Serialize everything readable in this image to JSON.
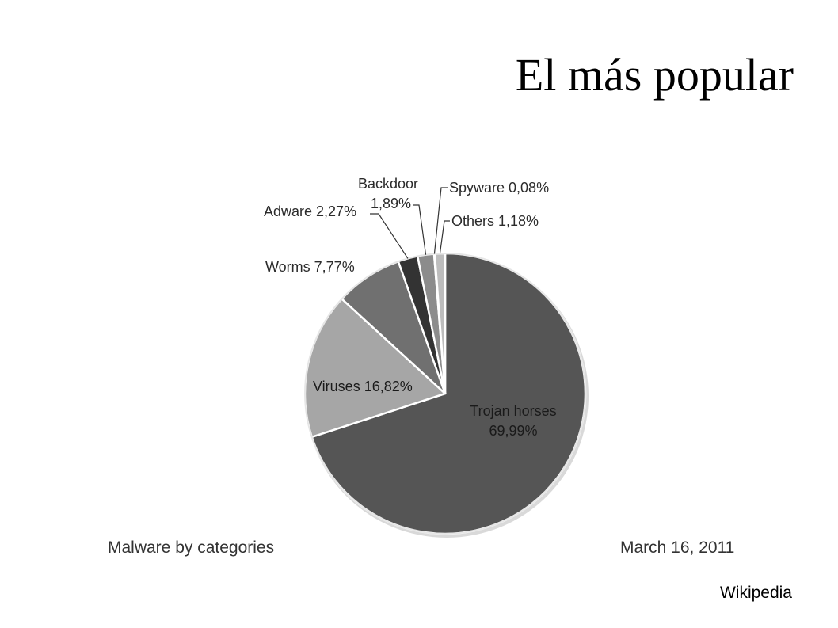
{
  "slide": {
    "title": "El más popular"
  },
  "chart_data": {
    "type": "pie",
    "title": "",
    "footer_left": "Malware by categories",
    "footer_right": "March 16, 2011",
    "slices": [
      {
        "label": "Trojan horses",
        "value": 69.99,
        "value_text": "69,99%",
        "color": "#555555"
      },
      {
        "label": "Viruses",
        "value": 16.82,
        "value_text": "16,82%",
        "color": "#a6a6a6"
      },
      {
        "label": "Worms",
        "value": 7.77,
        "value_text": "7,77%",
        "color": "#707070"
      },
      {
        "label": "Adware",
        "value": 2.27,
        "value_text": "2,27%",
        "color": "#333333"
      },
      {
        "label": "Backdoor",
        "value": 1.89,
        "value_text": "1,89%",
        "color": "#8c8c8c"
      },
      {
        "label": "Spyware",
        "value": 0.08,
        "value_text": "0,08%",
        "color": "#444444"
      },
      {
        "label": "Others",
        "value": 1.18,
        "value_text": "1,18%",
        "color": "#bdbdbd"
      }
    ]
  },
  "source": "Wikipedia"
}
